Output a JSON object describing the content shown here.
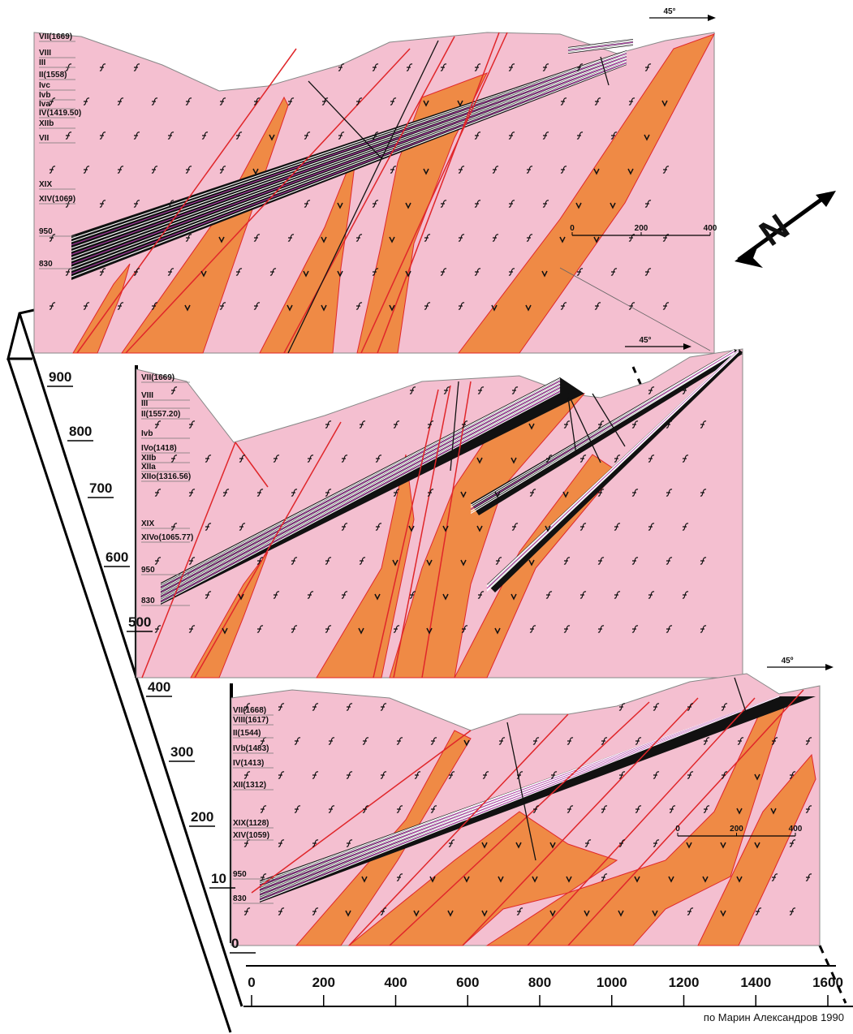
{
  "panels": [
    {
      "seam_labels": [
        "VII(1669)",
        "VIII",
        "III",
        "II(1558)",
        "Ivc",
        "Ivb",
        "Iva",
        "IV(1419.50)",
        "XIIb",
        "VII",
        "XIX",
        "XIV(1069)",
        "950",
        "830"
      ],
      "scale_bar": [
        "0",
        "200",
        "400"
      ],
      "direction": "45°"
    },
    {
      "seam_labels": [
        "VII(1669)",
        "VIII",
        "III",
        "II(1557.20)",
        "Ivb",
        "IVo(1418)",
        "XIIb",
        "XIIa",
        "XIIo(1316.56)",
        "XIX",
        "XIVo(1065.77)",
        "950",
        "830"
      ],
      "direction": "45°"
    },
    {
      "seam_labels": [
        "VII(1668)",
        "VIII(1617)",
        "II(1544)",
        "IVb(1483)",
        "IV(1413)",
        "XII(1312)",
        "XIX(1128)",
        "XIV(1059)",
        "950",
        "830"
      ],
      "scale_bar": [
        "0",
        "200",
        "400"
      ],
      "direction": "45º"
    }
  ],
  "vertical_axis": [
    "900",
    "800",
    "700",
    "600",
    "500",
    "400",
    "300",
    "200",
    "10",
    "0"
  ],
  "horizontal_axis": [
    "0",
    "200",
    "400",
    "600",
    "800",
    "1000",
    "1200",
    "1400",
    "1600"
  ],
  "north_arrow": "N",
  "credit": "по Марин Александров 1990"
}
